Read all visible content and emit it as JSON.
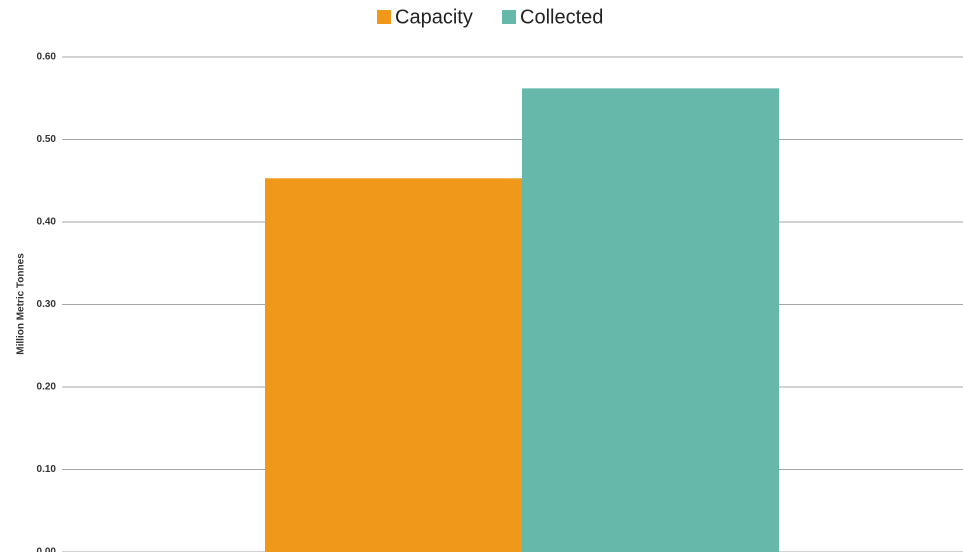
{
  "chart_data": {
    "type": "bar",
    "y_label": "Million Metric Tonnes",
    "categories": [
      null
    ],
    "series": [
      {
        "name": "Capacity",
        "color": "#f0981a",
        "values": [
          0.453
        ]
      },
      {
        "name": "Collected",
        "color": "#66b8aa",
        "values": [
          0.562
        ]
      }
    ],
    "ylim": [
      0,
      0.6
    ],
    "yticks": [
      {
        "value": 0,
        "label": "0.00"
      },
      {
        "value": 0.1,
        "label": "0.10"
      },
      {
        "value": 0.2,
        "label": "0.20"
      },
      {
        "value": 0.3,
        "label": "0.30"
      },
      {
        "value": 0.4,
        "label": "0.40"
      },
      {
        "value": 0.5,
        "label": "0.50"
      },
      {
        "value": 0.6,
        "label": "0.60"
      }
    ],
    "grid": true,
    "legend": "top"
  }
}
